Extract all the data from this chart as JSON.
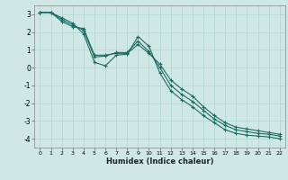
{
  "xlabel": "Humidex (Indice chaleur)",
  "xlim": [
    -0.5,
    22.5
  ],
  "ylim": [
    -4.5,
    3.5
  ],
  "xticks": [
    0,
    1,
    2,
    3,
    4,
    5,
    6,
    7,
    8,
    9,
    10,
    11,
    12,
    13,
    14,
    15,
    16,
    17,
    18,
    19,
    20,
    21,
    22
  ],
  "yticks": [
    -4,
    -3,
    -2,
    -1,
    0,
    1,
    2,
    3
  ],
  "bg_color": "#cfe8e6",
  "grid_color": "#b0d4d0",
  "line_color": "#1e6b62",
  "line1_x": [
    0,
    1,
    2,
    3,
    4,
    5,
    6,
    7,
    8,
    9,
    10,
    11,
    12,
    13,
    14,
    15,
    16,
    17,
    18,
    19,
    20,
    21,
    22
  ],
  "line1_y": [
    3.1,
    3.1,
    2.8,
    2.5,
    1.9,
    0.3,
    0.1,
    0.7,
    0.75,
    1.75,
    1.2,
    -0.3,
    -1.3,
    -1.8,
    -2.2,
    -2.7,
    -3.1,
    -3.5,
    -3.7,
    -3.8,
    -3.85,
    -3.9,
    -4.0
  ],
  "line2_x": [
    0,
    1,
    2,
    3,
    4,
    5,
    6,
    7,
    8,
    9,
    10,
    11,
    12,
    13,
    14,
    15,
    16,
    17,
    18,
    19,
    20,
    21,
    22
  ],
  "line2_y": [
    3.1,
    3.1,
    2.7,
    2.4,
    2.1,
    0.6,
    0.65,
    0.85,
    0.85,
    1.5,
    0.9,
    0.0,
    -1.0,
    -1.5,
    -1.9,
    -2.4,
    -2.9,
    -3.25,
    -3.5,
    -3.6,
    -3.7,
    -3.75,
    -3.85
  ],
  "line3_x": [
    0,
    1,
    2,
    3,
    4,
    5,
    6,
    7,
    8,
    9,
    10,
    11,
    12,
    13,
    14,
    15,
    16,
    17,
    18,
    19,
    20,
    21,
    22
  ],
  "line3_y": [
    3.1,
    3.1,
    2.6,
    2.3,
    2.2,
    0.7,
    0.7,
    0.8,
    0.8,
    1.3,
    0.8,
    0.2,
    -0.7,
    -1.2,
    -1.6,
    -2.2,
    -2.7,
    -3.1,
    -3.35,
    -3.45,
    -3.55,
    -3.65,
    -3.75
  ]
}
